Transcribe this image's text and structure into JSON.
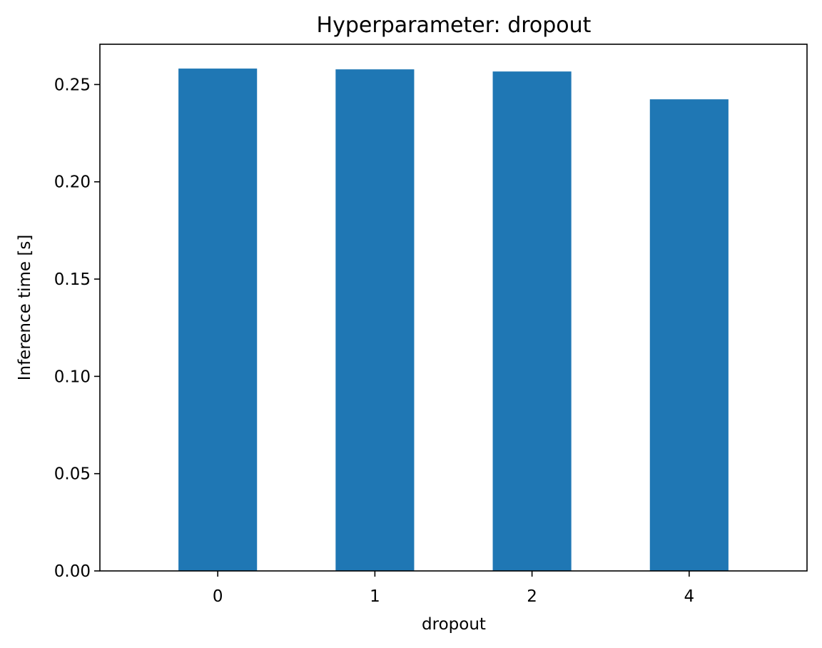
{
  "chart_data": {
    "type": "bar",
    "title": "Hyperparameter: dropout",
    "xlabel": "dropout",
    "ylabel": "Inference time [s]",
    "categories": [
      "0",
      "1",
      "2",
      "4"
    ],
    "values": [
      0.2582,
      0.2578,
      0.2567,
      0.2424
    ],
    "ylim": [
      0,
      0.2707
    ],
    "yticks": [
      0.0,
      0.05,
      0.1,
      0.15,
      0.2,
      0.25
    ],
    "ytick_labels": [
      "0.00",
      "0.05",
      "0.10",
      "0.15",
      "0.20",
      "0.25"
    ],
    "grid": false,
    "bar_color": "#1f77b4"
  }
}
